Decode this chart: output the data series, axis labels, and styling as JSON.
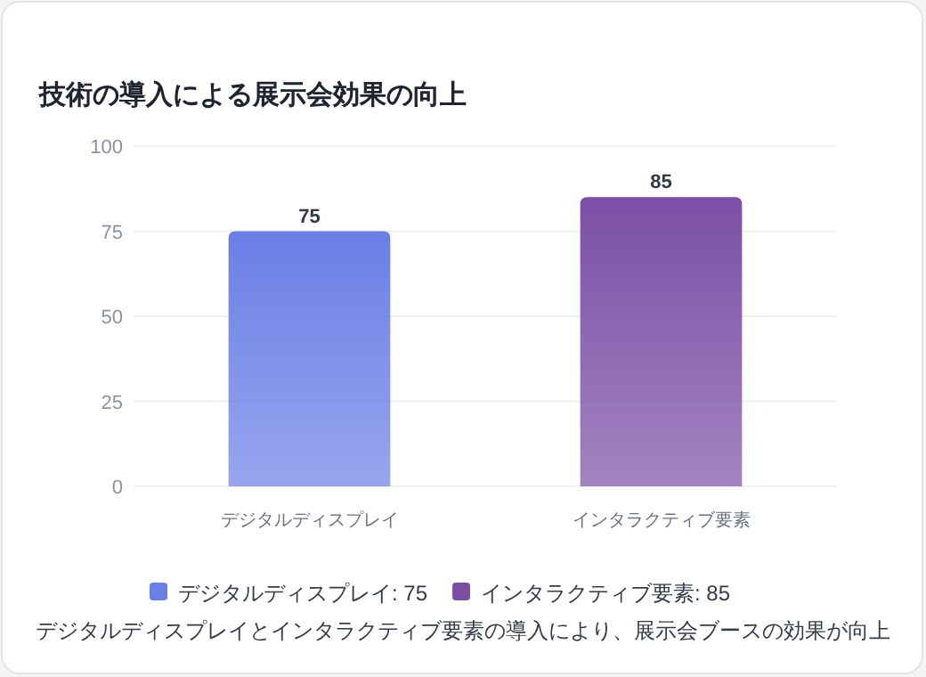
{
  "chart_data": {
    "type": "bar",
    "title": "技術の導入による展示会効果の向上",
    "categories": [
      "デジタルディスプレイ",
      "インタラクティブ要素"
    ],
    "series": [
      {
        "name": "デジタルディスプレイ: 75",
        "color": "#6a7fe6",
        "values": [
          75,
          null
        ]
      },
      {
        "name": "インタラクティブ要素: 85",
        "color": "#7b4fa6",
        "values": [
          null,
          85
        ]
      }
    ],
    "ylim": [
      0,
      100
    ],
    "yticks": [
      0,
      25,
      50,
      75,
      100
    ],
    "grid": "y",
    "data_labels": true,
    "legend": "bottom",
    "annotations": [
      "デジタルディスプレイとインタラクティブ要素の導入により、展示会ブースの効果が向上"
    ]
  }
}
